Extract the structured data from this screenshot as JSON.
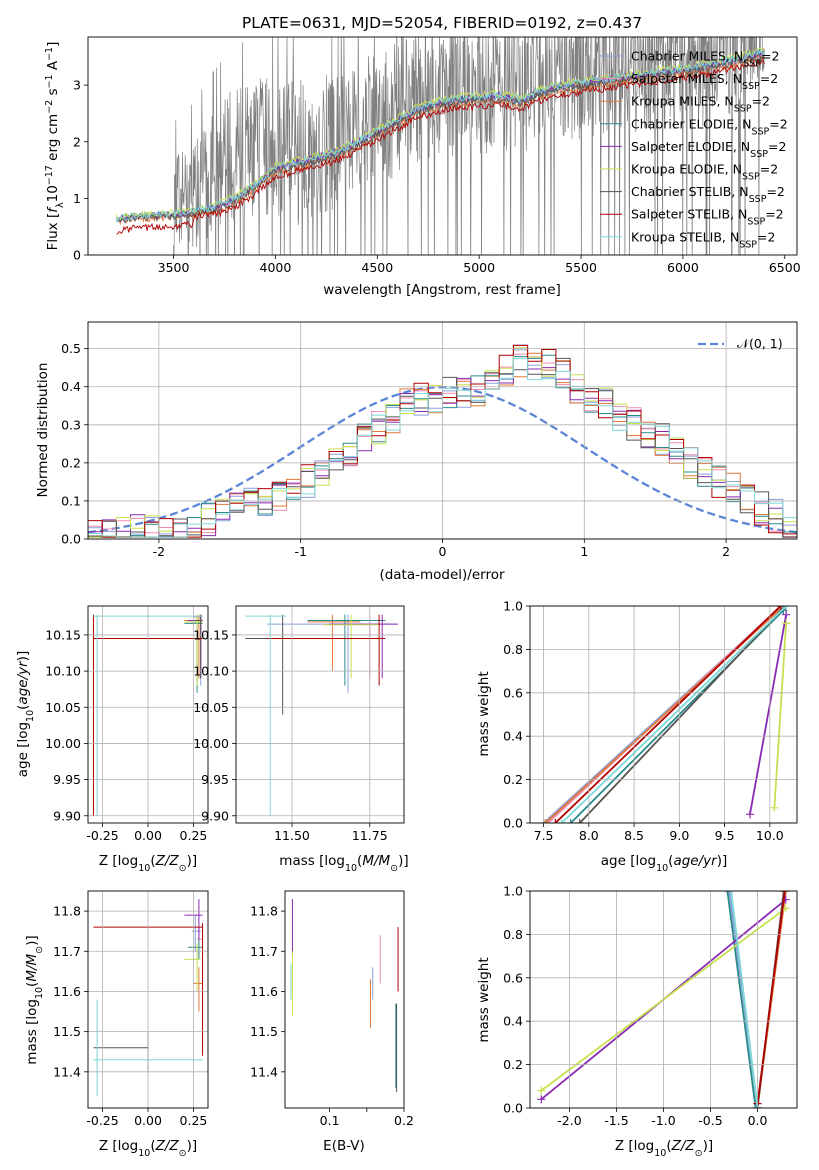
{
  "title": "PLATE=0631, MJD=52054, FIBERID=0192, z=0.437",
  "colors": {
    "Chabrier MILES": "#8aa0dc",
    "Salpeter MILES": "#f08cb0",
    "Kroupa MILES": "#e07838",
    "Chabrier ELODIE": "#2a8a8a",
    "Salpeter ELODIE": "#8a2ab4",
    "Kroupa ELODIE": "#c8e050",
    "Chabrier STELIB": "#555555",
    "Salpeter STELIB": "#b00000",
    "Kroupa STELIB": "#80d8d8",
    "data": "#808080",
    "normal": "#5b85d8"
  },
  "chart_data": [
    {
      "type": "line",
      "panel": "spectrum",
      "xlabel": "wavelength [Angstrom, rest frame]",
      "ylabel": "Flux [f_λ 10^-17 erg cm^-2 s^-1 A^-1]",
      "xlim": [
        3080,
        6560
      ],
      "ylim": [
        0,
        3.85
      ],
      "xticks": [
        3500,
        4000,
        4500,
        5000,
        5500,
        6000,
        6500
      ],
      "yticks": [
        0,
        1,
        2,
        3
      ],
      "legend_position": "top-right",
      "legend": [
        "Chabrier MILES, N_SSP=2",
        "Salpeter MILES, N_SSP=2",
        "Kroupa MILES, N_SSP=2",
        "Chabrier ELODIE, N_SSP=2",
        "Salpeter ELODIE, N_SSP=2",
        "Kroupa ELODIE, N_SSP=2",
        "Chabrier STELIB, N_SSP=2",
        "Salpeter STELIB, N_SSP=2",
        "Kroupa STELIB, N_SSP=2"
      ],
      "model_continuum": {
        "x": [
          3220,
          3300,
          3400,
          3500,
          3600,
          3700,
          3800,
          3900,
          4000,
          4100,
          4200,
          4300,
          4400,
          4500,
          4600,
          4700,
          4800,
          4900,
          5000,
          5100,
          5200,
          5300,
          5400,
          5500,
          5600,
          5700,
          5800,
          5900,
          6000,
          6100,
          6200,
          6300,
          6400
        ],
        "y": [
          0.62,
          0.66,
          0.68,
          0.7,
          0.74,
          0.82,
          0.95,
          1.2,
          1.5,
          1.6,
          1.68,
          1.78,
          1.95,
          2.15,
          2.35,
          2.55,
          2.65,
          2.72,
          2.75,
          2.78,
          2.7,
          2.85,
          2.95,
          3.0,
          3.05,
          3.1,
          3.15,
          3.2,
          3.25,
          3.3,
          3.38,
          3.45,
          3.55
        ]
      },
      "data_trace": {
        "x": [
          3220,
          3300,
          3400,
          3500,
          3600,
          3700,
          3800,
          3900,
          4000,
          4100,
          4200,
          4300,
          4400,
          4500,
          4600,
          4700,
          4800,
          4900,
          5000,
          5100,
          5200,
          5300,
          5400,
          5500,
          5600,
          5700,
          5800,
          5900,
          6000,
          6100,
          6200,
          6300,
          6400
        ],
        "y": [
          0.65,
          0.68,
          0.7,
          0.9,
          1.1,
          1.5,
          1.8,
          1.9,
          2.0,
          1.8,
          1.9,
          2.0,
          2.3,
          2.4,
          2.6,
          2.8,
          3.0,
          2.9,
          2.9,
          3.0,
          3.0,
          3.1,
          3.2,
          3.2,
          3.3,
          3.2,
          3.3,
          3.4,
          3.4,
          3.4,
          3.5,
          3.6,
          3.7
        ],
        "spread": [
          0.02,
          0.03,
          0.05,
          0.9,
          1.0,
          1.1,
          1.2,
          1.2,
          1.3,
          1.3,
          1.3,
          1.2,
          1.2,
          1.2,
          1.2,
          1.2,
          1.2,
          1.2,
          1.2,
          1.2,
          1.2,
          1.2,
          1.2,
          1.2,
          1.2,
          1.2,
          1.2,
          1.2,
          1.2,
          1.2,
          1.2,
          1.1,
          0.5
        ]
      }
    },
    {
      "type": "line",
      "panel": "residuals",
      "xlabel": "(data-model)/error",
      "ylabel": "Normed distribution",
      "xlim": [
        -2.5,
        2.5
      ],
      "ylim": [
        0,
        0.57
      ],
      "xticks": [
        -2,
        -1,
        0,
        1,
        2
      ],
      "yticks": [
        0.0,
        0.1,
        0.2,
        0.3,
        0.4,
        0.5
      ],
      "grid": true,
      "legend_position": "top-right",
      "normal_label": "𝒩(0, 1)",
      "bin_edges_start": -2.5,
      "bin_width": 0.1,
      "histogram_base": [
        0.015,
        0.015,
        0.015,
        0.02,
        0.02,
        0.02,
        0.02,
        0.025,
        0.05,
        0.07,
        0.09,
        0.1,
        0.1,
        0.12,
        0.13,
        0.15,
        0.18,
        0.2,
        0.22,
        0.26,
        0.29,
        0.32,
        0.35,
        0.37,
        0.37,
        0.38,
        0.38,
        0.39,
        0.41,
        0.44,
        0.47,
        0.46,
        0.46,
        0.44,
        0.4,
        0.37,
        0.36,
        0.32,
        0.3,
        0.28,
        0.26,
        0.24,
        0.2,
        0.18,
        0.15,
        0.13,
        0.1,
        0.08,
        0.06,
        0.04
      ]
    },
    {
      "type": "scatter",
      "panel": "age-vs-Z",
      "xlabel": "Z [log10(Z/Z⊙)]",
      "ylabel": "age [log10(age/yr)]",
      "xlim": [
        -0.33,
        0.33
      ],
      "ylim": [
        9.89,
        10.19
      ],
      "xticks": [
        -0.25,
        0.0,
        0.25
      ],
      "yticks": [
        9.9,
        9.95,
        10.0,
        10.05,
        10.1,
        10.15
      ],
      "grid": true
    },
    {
      "type": "scatter",
      "panel": "age-vs-mass",
      "xlabel": "mass [log10(M/M⊙)]",
      "ylabel": "",
      "xlim": [
        11.32,
        11.86
      ],
      "ylim": [
        9.89,
        10.19
      ],
      "xticks": [
        11.5,
        11.75
      ],
      "yticks": [
        9.9,
        9.95,
        10.0,
        10.05,
        10.1,
        10.15
      ],
      "grid": true
    },
    {
      "type": "line",
      "panel": "massweight-vs-age",
      "xlabel": "age [log10(age/yr)]",
      "ylabel": "mass weight",
      "xlim": [
        7.35,
        10.3
      ],
      "ylim": [
        0,
        1.0
      ],
      "xticks": [
        7.5,
        8.0,
        8.5,
        9.0,
        9.5,
        10.0
      ],
      "yticks": [
        0.0,
        0.2,
        0.4,
        0.6,
        0.8,
        1.0
      ],
      "grid": true
    },
    {
      "type": "scatter",
      "panel": "mass-vs-Z",
      "xlabel": "Z [log10(Z/Z⊙)]",
      "ylabel": "mass [log10(M/M⊙)]",
      "xlim": [
        -0.33,
        0.33
      ],
      "ylim": [
        11.31,
        11.85
      ],
      "xticks": [
        -0.25,
        0.0,
        0.25
      ],
      "yticks": [
        11.4,
        11.5,
        11.6,
        11.7,
        11.8
      ],
      "grid": true
    },
    {
      "type": "scatter",
      "panel": "mass-vs-ebv",
      "xlabel": "E(B-V)",
      "ylabel": "",
      "xlim": [
        0.04,
        0.2
      ],
      "ylim": [
        11.31,
        11.85
      ],
      "xticks": [
        0.1,
        0.15,
        0.2
      ],
      "xticklabels": [
        "0.1",
        "",
        "0.2"
      ],
      "yticks": [
        11.4,
        11.5,
        11.6,
        11.7,
        11.8
      ],
      "grid": false
    },
    {
      "type": "line",
      "panel": "massweight-vs-Z",
      "xlabel": "Z [log10(Z/Z⊙)]",
      "ylabel": "mass weight",
      "xlim": [
        -2.42,
        0.42
      ],
      "ylim": [
        0,
        1.0
      ],
      "xticks": [
        -2.0,
        -1.5,
        -1.0,
        -0.5,
        0.0
      ],
      "yticks": [
        0.0,
        0.2,
        0.4,
        0.6,
        0.8,
        1.0
      ],
      "grid": true
    }
  ]
}
